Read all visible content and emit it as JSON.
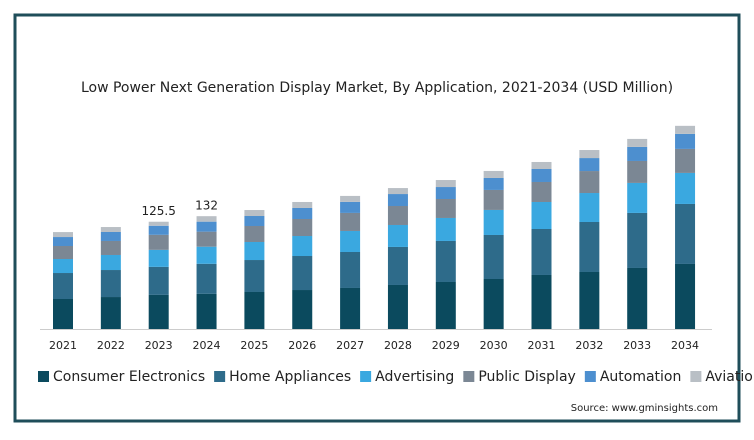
{
  "chart_data": {
    "type": "stacked-bar",
    "title": "Low Power Next Generation Display Market, By Application, 2021-2034 (USD Million)",
    "categories": [
      "2021",
      "2022",
      "2023",
      "2024",
      "2025",
      "2026",
      "2027",
      "2028",
      "2029",
      "2030",
      "2031",
      "2032",
      "2033",
      "2034"
    ],
    "series": [
      {
        "name": "Consumer Electronics",
        "color": "#0b4a5e",
        "values": [
          35.1,
          37.4,
          39.9,
          41.1,
          43.3,
          45.6,
          48.0,
          51.5,
          55.0,
          58.5,
          63.2,
          66.7,
          71.4,
          76.1
        ]
      },
      {
        "name": "Home Appliances",
        "color": "#2e6b8a",
        "values": [
          30.4,
          31.6,
          32.8,
          35.2,
          37.4,
          39.8,
          42.1,
          44.5,
          48.0,
          51.5,
          53.8,
          58.5,
          64.4,
          70.2
        ]
      },
      {
        "name": "Advertising",
        "color": "#3aa8e0",
        "values": [
          16.4,
          17.6,
          19.9,
          20.0,
          21.1,
          23.4,
          24.6,
          25.7,
          26.9,
          29.3,
          31.6,
          33.9,
          35.1,
          36.3
        ]
      },
      {
        "name": "Public Display",
        "color": "#7b8794",
        "values": [
          15.2,
          16.4,
          17.6,
          17.6,
          18.7,
          19.9,
          21.1,
          22.2,
          22.2,
          23.4,
          23.4,
          25.7,
          25.7,
          28.1
        ]
      },
      {
        "name": "Automation",
        "color": "#4d8fcf",
        "values": [
          10.5,
          10.5,
          10.6,
          11.7,
          11.7,
          12.9,
          12.9,
          14.0,
          14.0,
          14.0,
          15.2,
          15.2,
          16.4,
          17.6
        ]
      },
      {
        "name": "Aviation",
        "color": "#b9bfc5",
        "values": [
          5.8,
          5.8,
          4.7,
          6.4,
          7.0,
          7.0,
          7.0,
          7.0,
          8.2,
          8.2,
          8.2,
          9.4,
          9.4,
          9.4
        ]
      }
    ],
    "annotations": [
      {
        "x": "2023",
        "value": 125.5
      },
      {
        "x": "2024",
        "value": 132
      }
    ],
    "source": "Source: www.gminsights.com"
  }
}
